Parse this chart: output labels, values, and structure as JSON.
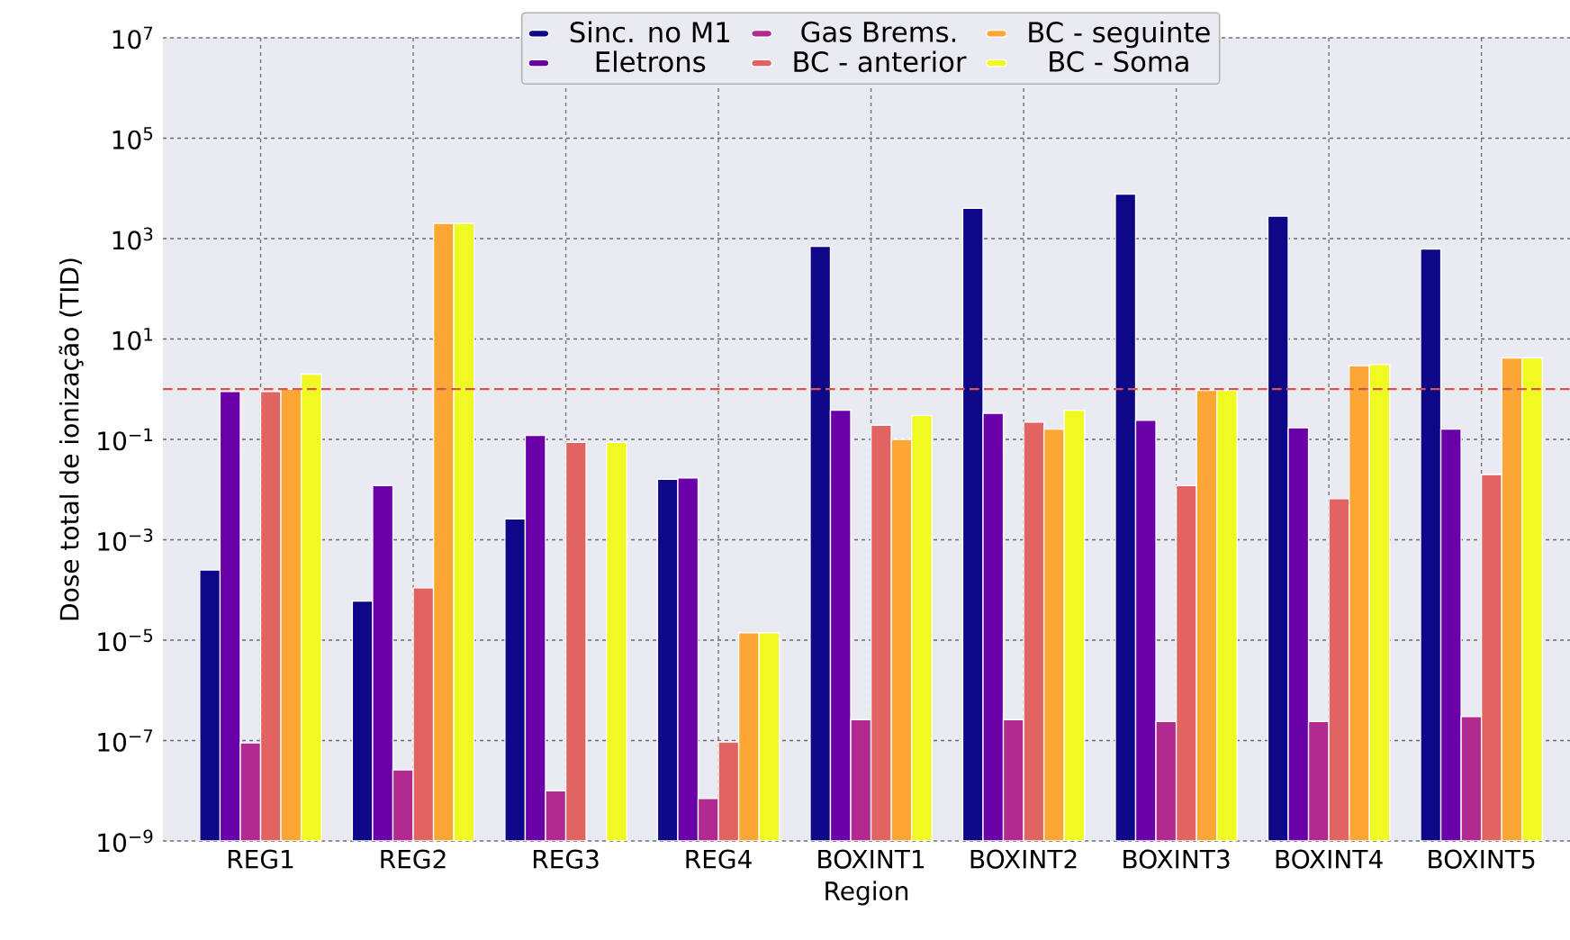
{
  "chart_data": {
    "type": "bar",
    "xlabel": "Region",
    "ylabel": "Dose total de ionização (TID)",
    "categories": [
      "REG1",
      "REG2",
      "REG3",
      "REG4",
      "BOXINT1",
      "BOXINT2",
      "BOXINT3",
      "BOXINT4",
      "BOXINT5"
    ],
    "series": [
      {
        "name": "Sinc. no M1",
        "color": "#0d0887",
        "values": [
          0.00025,
          6e-05,
          0.0026,
          0.016,
          700,
          4000,
          7700,
          2800,
          620
        ]
      },
      {
        "name": "Eletrons",
        "color": "#6a00a8",
        "values": [
          0.9,
          0.012,
          0.12,
          0.017,
          0.38,
          0.33,
          0.24,
          0.17,
          0.16
        ]
      },
      {
        "name": "Gas Brems.",
        "color": "#b12a90",
        "values": [
          9e-08,
          2.6e-08,
          1e-08,
          7e-09,
          2.6e-07,
          2.6e-07,
          2.4e-07,
          2.4e-07,
          3e-07
        ]
      },
      {
        "name": "BC - anterior",
        "color": "#e16462",
        "values": [
          0.9,
          0.00011,
          0.087,
          9.4e-08,
          0.19,
          0.22,
          0.012,
          0.0066,
          0.02
        ]
      },
      {
        "name": "BC - seguinte",
        "color": "#fca636",
        "values": [
          1.0,
          2000,
          null,
          1.4e-05,
          0.1,
          0.16,
          0.95,
          2.9,
          4.2
        ]
      },
      {
        "name": "BC - Soma",
        "color": "#f0f921",
        "values": [
          2.0,
          2000,
          0.087,
          1.4e-05,
          0.3,
          0.38,
          0.95,
          3.1,
          4.2
        ]
      }
    ],
    "log": true,
    "ylim": [
      1e-09,
      10000000.0
    ],
    "yticks": [
      {
        "value": 1e-09,
        "label": "10$^{−9}$"
      },
      {
        "value": 1e-07,
        "label": "10$^{−7}$"
      },
      {
        "value": 1e-05,
        "label": "10$^{−5}$"
      },
      {
        "value": 0.001,
        "label": "10$^{−3}$"
      },
      {
        "value": 0.1,
        "label": "10$^{−1}$"
      },
      {
        "value": 10,
        "label": "10$^{1}$"
      },
      {
        "value": 1000,
        "label": "10$^{3}$"
      },
      {
        "value": 100000,
        "label": "10$^{5}$"
      },
      {
        "value": 10000000,
        "label": "10$^{7}$"
      }
    ],
    "ref_lines": [
      {
        "axis": "y",
        "value": 1,
        "color": "#d9534f",
        "line_style": "dashed"
      }
    ],
    "grid": true,
    "legend": "top"
  }
}
